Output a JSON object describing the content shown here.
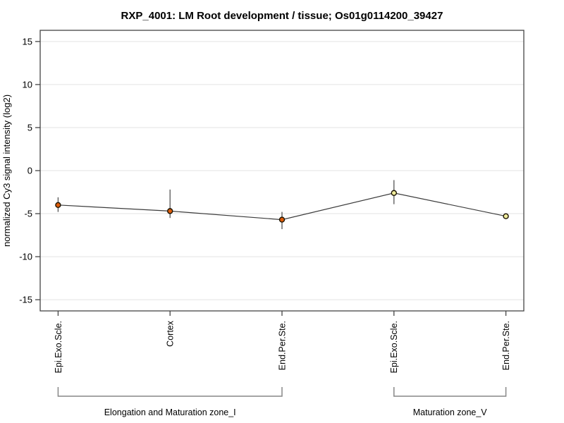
{
  "chart_data": {
    "type": "line",
    "title": "RXP_4001: LM Root development / tissue; Os01g0114200_39427",
    "xlabel": "",
    "ylabel": "normalized Cy3 signal intensity (log2)",
    "ylim": [
      -16.3,
      16.3
    ],
    "yticks": [
      -15,
      -10,
      -5,
      0,
      5,
      10,
      15
    ],
    "grid": true,
    "legend": false,
    "categories": [
      "Epi.Exo.Scle.",
      "Cortex",
      "End.Per.Ste.",
      "Epi.Exo.Scle.",
      "End.Per.Ste."
    ],
    "series": [
      {
        "name": "normalized Cy3 signal intensity",
        "values": [
          -4.0,
          -4.7,
          -5.7,
          -2.6,
          -5.3
        ],
        "error_high": [
          -3.1,
          -2.2,
          -4.8,
          -1.1,
          -5.3
        ],
        "error_low": [
          -4.8,
          -5.5,
          -6.8,
          -3.9,
          -5.3
        ],
        "point_colors": [
          "#dd5c0a",
          "#dd5c0a",
          "#dd5c0a",
          "#eeeb9b",
          "#eeeb9b"
        ],
        "line_color": "#3c3c3c",
        "error_bar_color": "#555555",
        "point_outline_color": "#1a1200"
      }
    ],
    "groups": [
      {
        "label": "Elongation and Maturation zone_I",
        "start": 0,
        "end": 2
      },
      {
        "label": "Maturation zone_V",
        "start": 3,
        "end": 4
      }
    ],
    "colors": {
      "gridline": "#e3e3e3",
      "plot_border": "#444444",
      "tick": "#444444",
      "bracket": "#878787"
    }
  }
}
